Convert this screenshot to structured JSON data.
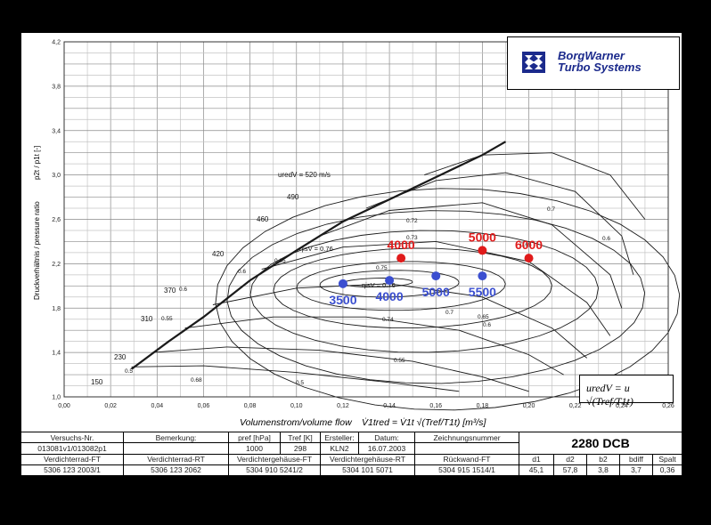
{
  "logo": {
    "line1": "BorgWarner",
    "line2": "Turbo Systems",
    "color": "#1b2a8c"
  },
  "chart_data": {
    "type": "scatter",
    "title": "",
    "xlabel": "Volumenstrom/volume flow",
    "xlabel_formula": "V̇1tred = V̇1t √(Tref/T1t)  [m³/s]",
    "ylabel": "Druckverhältnis / pressure ratio",
    "ylabel_symbol": "p2t / p1t [-]",
    "xlim": [
      0.0,
      0.26
    ],
    "ylim": [
      1.0,
      4.2
    ],
    "x_ticks": [
      "0,00",
      "0,02",
      "0,04",
      "0,06",
      "0,08",
      "0,10",
      "0,12",
      "0,14",
      "0,16",
      "0,18",
      "0,20",
      "0,22",
      "0,24",
      "0,26"
    ],
    "y_ticks": [
      "1,0",
      "1,4",
      "1,8",
      "2,2",
      "2,6",
      "3,0",
      "3,4",
      "3,8",
      "4,2"
    ],
    "grid": true,
    "speed_lines": {
      "unit_label": "uredV = 520 m/s",
      "labels": [
        "150",
        "230",
        "310",
        "370",
        "420",
        "460",
        "490"
      ]
    },
    "efficiency_labels": {
      "top": "ηisV = 0.76",
      "inner": "ηisV = 0.76",
      "values": [
        "0.72",
        "0.73",
        "0.75",
        "0.74",
        "0.7",
        "0.65",
        "0.6",
        "0.55",
        "0.5",
        "0.68",
        "0.6",
        "0.65",
        "0.6",
        "0.55",
        "0.5",
        "0.6",
        "0.65",
        "0.7"
      ]
    },
    "formula_box": "uredV = u √(Tref/T1t)",
    "series": [
      {
        "name": "",
        "color": "#e01b1b",
        "points": [
          {
            "label": "4000",
            "x": 0.145,
            "y": 2.25
          },
          {
            "label": "5000",
            "x": 0.18,
            "y": 2.32
          },
          {
            "label": "6000",
            "x": 0.2,
            "y": 2.25
          }
        ]
      },
      {
        "name": "",
        "color": "#3b4fd0",
        "points": [
          {
            "label": "3500",
            "x": 0.12,
            "y": 2.02
          },
          {
            "label": "4000",
            "x": 0.14,
            "y": 2.05
          },
          {
            "label": "5000",
            "x": 0.16,
            "y": 2.09
          },
          {
            "label": "5500",
            "x": 0.18,
            "y": 2.09
          }
        ]
      }
    ]
  },
  "info_table": {
    "r1": [
      "Versuchs-Nr.",
      "Bemerkung:",
      "pref [hPa]",
      "Tref [K]",
      "Ersteller:",
      "Datum:",
      "Zeichnungsnummer"
    ],
    "r2": [
      "013081v1/013082p1",
      "",
      "1000",
      "298",
      "KLN2",
      "16.07.2003",
      ""
    ],
    "title": "2280 DCB",
    "r3": [
      "Verdichterrad-FT",
      "Verdichterrad-RT",
      "Verdichtergehäuse-FT",
      "Verdichtergehäuse-RT",
      "Rückwand-FT",
      "d1",
      "d2",
      "b2",
      "bdiff",
      "Spalt"
    ],
    "r4": [
      "5306 123 2003/1",
      "5306 123 2062",
      "5304 910 5241/2",
      "5304 101 5071",
      "5304 915 1514/1",
      "45,1",
      "57,8",
      "3,8",
      "3,7",
      "0,36"
    ]
  }
}
